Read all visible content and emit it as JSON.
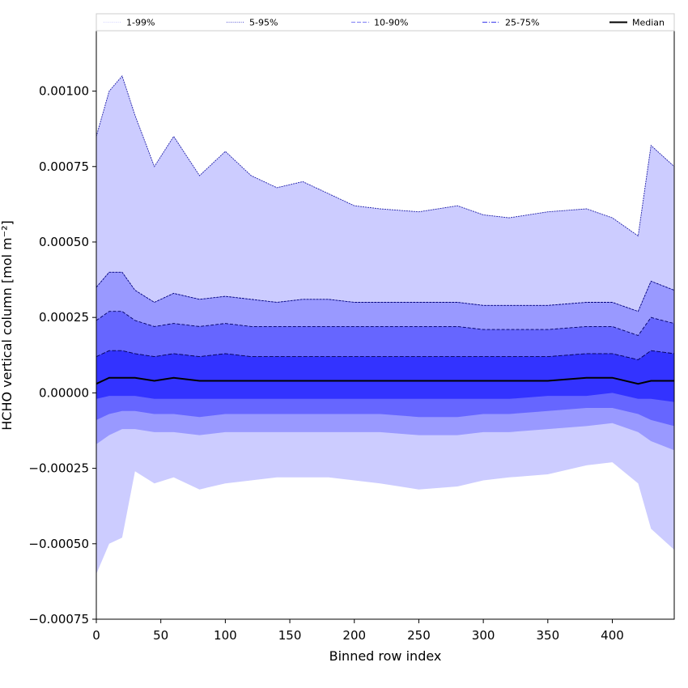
{
  "chart_data": {
    "type": "area",
    "xlabel": "Binned row index",
    "ylabel": "HCHO vertical column [mol m⁻²]",
    "xlim": [
      0,
      448
    ],
    "ylim": [
      -0.00075,
      0.0012
    ],
    "x_ticks": [
      {
        "value": 0,
        "label": "0"
      },
      {
        "value": 50,
        "label": "50"
      },
      {
        "value": 100,
        "label": "100"
      },
      {
        "value": 150,
        "label": "150"
      },
      {
        "value": 200,
        "label": "200"
      },
      {
        "value": 250,
        "label": "250"
      },
      {
        "value": 300,
        "label": "300"
      },
      {
        "value": 350,
        "label": "350"
      },
      {
        "value": 400,
        "label": "400"
      }
    ],
    "y_ticks": [
      {
        "value": -0.00075,
        "label": "−0.00075"
      },
      {
        "value": -0.0005,
        "label": "−0.00050"
      },
      {
        "value": -0.00025,
        "label": "−0.00025"
      },
      {
        "value": 0.0,
        "label": "0.00000"
      },
      {
        "value": 0.00025,
        "label": "0.00025"
      },
      {
        "value": 0.0005,
        "label": "0.00050"
      },
      {
        "value": 0.00075,
        "label": "0.00075"
      },
      {
        "value": 0.001,
        "label": "0.00100"
      }
    ],
    "grid": false,
    "legend": {
      "placement": "top",
      "entries": [
        {
          "label": "1-99%",
          "color": "#d4d4ff",
          "style": "dotted"
        },
        {
          "label": "5-95%",
          "color": "#6a6ad8",
          "style": "dotted"
        },
        {
          "label": "10-90%",
          "color": "#8e8ef5",
          "style": "dashed"
        },
        {
          "label": "25-75%",
          "color": "#5454ee",
          "style": "dashdot"
        },
        {
          "label": "Median",
          "color": "#000000",
          "style": "solid"
        }
      ]
    },
    "x": [
      0,
      10,
      20,
      30,
      45,
      60,
      80,
      100,
      120,
      140,
      160,
      180,
      200,
      220,
      250,
      280,
      300,
      320,
      350,
      380,
      400,
      420,
      430,
      448
    ],
    "bands": [
      {
        "name": "1-99%",
        "color": "#ccccff",
        "upper": [
          0.00085,
          0.001,
          0.00105,
          0.00092,
          0.00075,
          0.00085,
          0.00072,
          0.0008,
          0.00072,
          0.00068,
          0.0007,
          0.00066,
          0.00062,
          0.00061,
          0.0006,
          0.00062,
          0.00059,
          0.00058,
          0.0006,
          0.00061,
          0.00058,
          0.00052,
          0.00082,
          0.00075
        ],
        "lower": [
          -0.0006,
          -0.0005,
          -0.00048,
          -0.00026,
          -0.0003,
          -0.00028,
          -0.00032,
          -0.0003,
          -0.00029,
          -0.00028,
          -0.00028,
          -0.00028,
          -0.00029,
          -0.0003,
          -0.00032,
          -0.00031,
          -0.00029,
          -0.00028,
          -0.00027,
          -0.00024,
          -0.00023,
          -0.0003,
          -0.00045,
          -0.00052
        ]
      },
      {
        "name": "5-95%",
        "color": "#9999ff",
        "upper": [
          0.00035,
          0.0004,
          0.0004,
          0.00034,
          0.0003,
          0.00033,
          0.00031,
          0.00032,
          0.00031,
          0.0003,
          0.00031,
          0.00031,
          0.0003,
          0.0003,
          0.0003,
          0.0003,
          0.00029,
          0.00029,
          0.00029,
          0.0003,
          0.0003,
          0.00027,
          0.00037,
          0.00034
        ],
        "lower": [
          -0.00017,
          -0.00014,
          -0.00012,
          -0.00012,
          -0.00013,
          -0.00013,
          -0.00014,
          -0.00013,
          -0.00013,
          -0.00013,
          -0.00013,
          -0.00013,
          -0.00013,
          -0.00013,
          -0.00014,
          -0.00014,
          -0.00013,
          -0.00013,
          -0.00012,
          -0.00011,
          -0.0001,
          -0.00013,
          -0.00016,
          -0.00019
        ]
      },
      {
        "name": "10-90%",
        "color": "#6666ff",
        "upper": [
          0.00024,
          0.00027,
          0.00027,
          0.00024,
          0.00022,
          0.00023,
          0.00022,
          0.00023,
          0.00022,
          0.00022,
          0.00022,
          0.00022,
          0.00022,
          0.00022,
          0.00022,
          0.00022,
          0.00021,
          0.00021,
          0.00021,
          0.00022,
          0.00022,
          0.00019,
          0.00025,
          0.00023
        ],
        "lower": [
          -9e-05,
          -7e-05,
          -6e-05,
          -6e-05,
          -7e-05,
          -7e-05,
          -8e-05,
          -7e-05,
          -7e-05,
          -7e-05,
          -7e-05,
          -7e-05,
          -7e-05,
          -7e-05,
          -8e-05,
          -8e-05,
          -7e-05,
          -7e-05,
          -6e-05,
          -5e-05,
          -5e-05,
          -7e-05,
          -9e-05,
          -0.00011
        ]
      },
      {
        "name": "25-75%",
        "color": "#3333ff",
        "upper": [
          0.00012,
          0.00014,
          0.00014,
          0.00013,
          0.00012,
          0.00013,
          0.00012,
          0.00013,
          0.00012,
          0.00012,
          0.00012,
          0.00012,
          0.00012,
          0.00012,
          0.00012,
          0.00012,
          0.00012,
          0.00012,
          0.00012,
          0.00013,
          0.00013,
          0.00011,
          0.00014,
          0.00013
        ],
        "lower": [
          -2e-05,
          -1e-05,
          -1e-05,
          -1e-05,
          -2e-05,
          -2e-05,
          -2e-05,
          -2e-05,
          -2e-05,
          -2e-05,
          -2e-05,
          -2e-05,
          -2e-05,
          -2e-05,
          -2e-05,
          -2e-05,
          -2e-05,
          -2e-05,
          -1e-05,
          -1e-05,
          0.0,
          -2e-05,
          -2e-05,
          -3e-05
        ]
      }
    ],
    "median": {
      "name": "Median",
      "color": "#000000",
      "values": [
        3e-05,
        5e-05,
        5e-05,
        5e-05,
        4e-05,
        5e-05,
        4e-05,
        4e-05,
        4e-05,
        4e-05,
        4e-05,
        4e-05,
        4e-05,
        4e-05,
        4e-05,
        4e-05,
        4e-05,
        4e-05,
        4e-05,
        5e-05,
        5e-05,
        3e-05,
        4e-05,
        4e-05
      ]
    }
  }
}
